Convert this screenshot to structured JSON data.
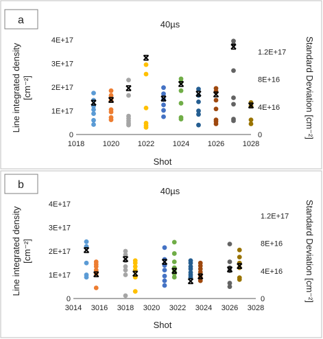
{
  "chart_data": [
    {
      "type": "scatter",
      "panel_label": "a",
      "title": "40µs",
      "xlabel": "Shot",
      "ylabel_lines": [
        "Line integrated density",
        "[cm⁻²]"
      ],
      "y2label": "Standard Deviation [cm⁻²]",
      "xlim": [
        1018,
        1028
      ],
      "ylim": [
        0,
        4e+17
      ],
      "y2lim": [
        0,
        1.33e+17
      ],
      "x_ticks": [
        "1018",
        "1020",
        "1022",
        "1024",
        "1026",
        "1028"
      ],
      "y_ticks": [
        "0",
        "1E+17",
        "2E+17",
        "3E+17",
        "4E+17"
      ],
      "y2_ticks": [
        "0",
        "4E+16",
        "8E+16",
        "1.2E+17"
      ],
      "grid": false,
      "series": [
        {
          "color": "#5b9bd5",
          "x": 1019,
          "y": [
            1.75e+17,
            1.45e+17,
            1.2e+17,
            1.05e+17,
            8.8e+16,
            6e+16,
            4.2e+16
          ]
        },
        {
          "color": "#ed7d31",
          "x": 1020,
          "y": [
            1.85e+17,
            1.65e+17,
            1.45e+17,
            1.05e+17,
            9.5e+16,
            7.2e+16,
            6.2e+16
          ]
        },
        {
          "color": "#a5a5a5",
          "x": 1021,
          "y": [
            2.3e+17,
            1.65e+17,
            7.8e+16,
            6.8e+16,
            5.8e+16,
            4.8e+16,
            4e+16
          ]
        },
        {
          "color": "#ffc000",
          "x": 1022,
          "y": [
            2.95e+17,
            2.55e+17,
            1.12e+17,
            4.8e+16,
            3.8e+16,
            3e+16
          ]
        },
        {
          "color": "#4472c4",
          "x": 1023,
          "y": [
            1.98e+17,
            1.72e+17,
            1.48e+17,
            1.25e+17,
            1.02e+17,
            7.5e+16
          ]
        },
        {
          "color": "#70ad47",
          "x": 1024,
          "y": [
            2.35e+17,
            2.22e+17,
            1.85e+17,
            1.32e+17,
            7.2e+16,
            6.5e+16
          ]
        },
        {
          "color": "#255e91",
          "x": 1025,
          "y": [
            1.92e+17,
            1.65e+17,
            1.38e+17,
            1e+17,
            8.5e+16,
            4e+16
          ]
        },
        {
          "color": "#9e480e",
          "x": 1026,
          "y": [
            1.95e+17,
            1.82e+17,
            1.45e+17,
            1.08e+17,
            6.2e+16,
            5.5e+16,
            4.5e+16
          ]
        },
        {
          "color": "#636363",
          "x": 1027,
          "y": [
            3.95e+17,
            3.8e+17,
            2.7e+17,
            1.55e+17,
            1.28e+17,
            6.5e+16,
            5.8e+16
          ]
        },
        {
          "color": "#997300",
          "x": 1028,
          "y": [
            1.35e+17,
            1.2e+17,
            6.2e+16,
            4.5e+16
          ]
        }
      ],
      "std_dev": {
        "marker": "black-x",
        "x": [
          1019,
          1020,
          1021,
          1022,
          1023,
          1024,
          1025,
          1026,
          1027,
          1028
        ],
        "y": [
          4.6e+16,
          5e+16,
          6.7e+16,
          1.11e+17,
          5.2e+16,
          7.3e+16,
          5.9e+16,
          5.8e+16,
          1.27e+17,
          4.2e+16
        ]
      }
    },
    {
      "type": "scatter",
      "panel_label": "b",
      "title": "40µs",
      "xlabel": "Shot",
      "ylabel_lines": [
        "Line integrated density",
        "[cm⁻²]"
      ],
      "y2label": "Standard Deviation [cm⁻²]",
      "xlim": [
        3014,
        3028
      ],
      "ylim": [
        0,
        4e+17
      ],
      "y2lim": [
        0,
        1.33e+17
      ],
      "x_ticks": [
        "3014",
        "3016",
        "3018",
        "3020",
        "3022",
        "3024",
        "3026",
        "3028"
      ],
      "y_ticks": [
        "0",
        "1E+17",
        "2E+17",
        "3E+17",
        "4E+17"
      ],
      "y2_ticks": [
        "0",
        "4E+16",
        "8E+16",
        "1.2E+17"
      ],
      "grid": false,
      "series": [
        {
          "color": "#5b9bd5",
          "x": 3015,
          "y": [
            2.4e+17,
            2.2e+17,
            1.5e+17,
            1e+17,
            9e+16
          ]
        },
        {
          "color": "#ed7d31",
          "x": 3015.75,
          "y": [
            1.55e+17,
            1.45e+17,
            1.35e+17,
            1.2e+17,
            1.05e+17,
            4.5e+16
          ]
        },
        {
          "color": "#a5a5a5",
          "x": 3018,
          "y": [
            2e+17,
            1.85e+17,
            1.6e+17,
            1.35e+17,
            1.2e+17,
            1e+17,
            1.2e+16
          ]
        },
        {
          "color": "#ffc000",
          "x": 3018.75,
          "y": [
            1.6e+17,
            1.5e+17,
            1.35e+17,
            1.2e+17,
            9e+16,
            3e+16
          ]
        },
        {
          "color": "#4472c4",
          "x": 3021,
          "y": [
            2.15e+17,
            1.65e+17,
            1.4e+17,
            1.2e+17,
            9.5e+16,
            7.5e+16,
            5.5e+16
          ]
        },
        {
          "color": "#70ad47",
          "x": 3021.75,
          "y": [
            2.38e+17,
            1.9e+17,
            1.55e+17,
            1.3e+17,
            1.15e+17,
            1.05e+17,
            9e+16
          ]
        },
        {
          "color": "#255e91",
          "x": 3023,
          "y": [
            1.6e+17,
            1.5e+17,
            1.35e+17,
            1.25e+17,
            1.1e+17,
            1e+17,
            9e+16
          ]
        },
        {
          "color": "#9e480e",
          "x": 3023.75,
          "y": [
            1.5e+17,
            1.38e+17,
            1.25e+17,
            1.12e+17,
            1e+17,
            8.8e+16,
            7.5e+16
          ]
        },
        {
          "color": "#636363",
          "x": 3026,
          "y": [
            2.3e+17,
            1.55e+17,
            1.3e+17,
            1.18e+17,
            6.5e+16,
            5e+16
          ]
        },
        {
          "color": "#997300",
          "x": 3026.75,
          "y": [
            2.05e+17,
            1.75e+17,
            1.5e+17,
            1.3e+17,
            8.8e+16,
            8e+16
          ]
        }
      ],
      "std_dev": {
        "marker": "black-x",
        "x": [
          3015,
          3015.75,
          3018,
          3018.75,
          3021,
          3021.75,
          3023,
          3023.75,
          3026,
          3026.75
        ],
        "y": [
          7e+16,
          3.5e+16,
          5.7e+16,
          3.6e+16,
          5.3e+16,
          4e+16,
          2.5e+16,
          3.2e+16,
          4.2e+16,
          4.7e+16
        ]
      }
    }
  ]
}
